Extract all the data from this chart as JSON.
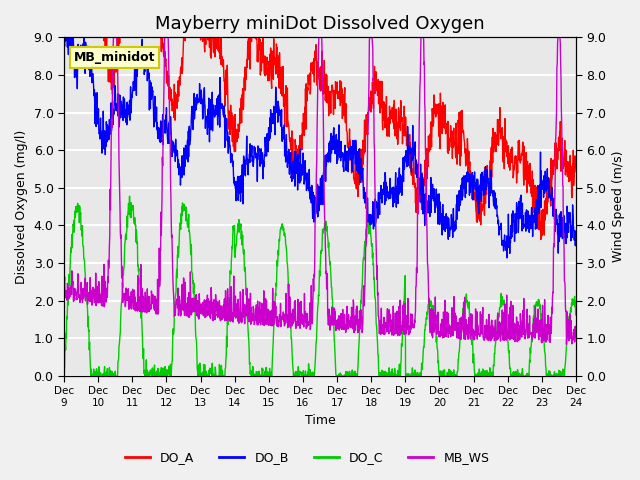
{
  "title": "Mayberry miniDot Dissolved Oxygen",
  "xlabel": "Time",
  "ylabel_left": "Dissolved Oxygen (mg/l)",
  "ylabel_right": "Wind Speed (m/s)",
  "ylim": [
    0.0,
    9.0
  ],
  "yticks": [
    0.0,
    1.0,
    2.0,
    3.0,
    4.0,
    5.0,
    6.0,
    7.0,
    8.0,
    9.0
  ],
  "x_tick_labels": [
    "Dec 9",
    "Dec 10",
    "Dec 11",
    "Dec 12",
    "Dec 13",
    "Dec 14",
    "Dec 15",
    "Dec 16",
    "Dec 17",
    "Dec 18",
    "Dec 19",
    "Dec 20",
    "Dec 21",
    "Dec 22",
    "Dec 23",
    "Dec 24"
  ],
  "num_points": 1500,
  "line_colors": {
    "DO_A": "#ff0000",
    "DO_B": "#0000ff",
    "DO_C": "#00cc00",
    "MB_WS": "#cc00cc"
  },
  "line_width": 1.0,
  "background_color": "#f0f0f0",
  "plot_bg_color": "#e8e8e8",
  "legend_box_color": "#ffffcc",
  "legend_box_edge": "#cccc00",
  "annotation_text": "MB_minidot",
  "grid_color": "#ffffff",
  "title_fontsize": 13
}
